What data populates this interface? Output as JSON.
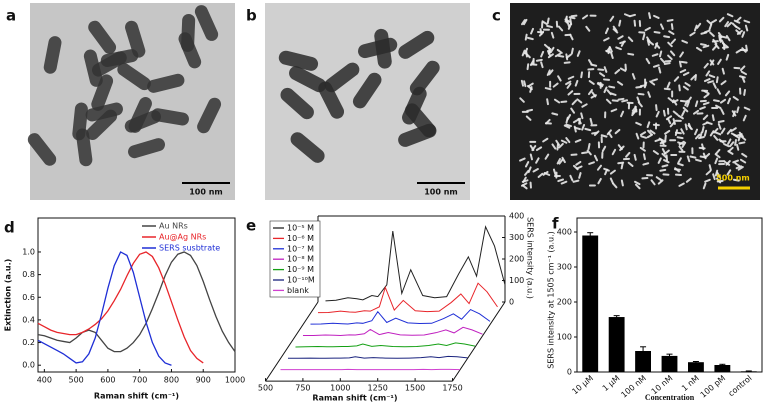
{
  "images": [
    {
      "panel": "a",
      "scale_bar": "100 nm"
    },
    {
      "panel": "b",
      "scale_bar": "100 nm"
    },
    {
      "panel": "c",
      "scale_bar": "500 nm"
    }
  ],
  "chart_data": [
    {
      "type": "line",
      "panel": "d",
      "xlabel": "Raman shift (cm⁻¹)",
      "ylabel": "Extinction (a.u.)",
      "xlim": [
        380,
        1000
      ],
      "xticks": [
        400,
        500,
        600,
        700,
        800,
        900,
        1000
      ],
      "ylim": [
        -0.06,
        1.3
      ],
      "yticks": [
        {
          "value": 0,
          "label": "0.0"
        },
        {
          "value": 0.2,
          "label": "0.2"
        },
        {
          "value": 0.4,
          "label": "0.4"
        },
        {
          "value": 0.6,
          "label": "0.6"
        },
        {
          "value": 0.8,
          "label": "0.8"
        },
        {
          "value": 1,
          "label": "1.0"
        }
      ],
      "x": [
        380,
        400,
        420,
        440,
        460,
        480,
        500,
        520,
        540,
        560,
        580,
        600,
        620,
        640,
        660,
        680,
        700,
        720,
        740,
        760,
        780,
        800,
        820,
        840,
        860,
        880,
        900,
        920,
        940,
        960,
        980,
        1000
      ],
      "series": [
        {
          "name": "Au NRs",
          "color": "#444444",
          "values": [
            0.27,
            0.26,
            0.24,
            0.22,
            0.21,
            0.2,
            0.24,
            0.29,
            0.31,
            0.29,
            0.22,
            0.15,
            0.12,
            0.12,
            0.15,
            0.2,
            0.27,
            0.37,
            0.5,
            0.64,
            0.79,
            0.91,
            0.98,
            1.0,
            0.97,
            0.88,
            0.74,
            0.58,
            0.43,
            0.3,
            0.2,
            0.12
          ]
        },
        {
          "name": "Au@Ag NRs",
          "color": "#e8252a",
          "values": [
            0.37,
            0.34,
            0.31,
            0.29,
            0.28,
            0.27,
            0.27,
            0.29,
            0.32,
            0.36,
            0.41,
            0.48,
            0.57,
            0.67,
            0.79,
            0.9,
            0.98,
            1.0,
            0.96,
            0.86,
            0.72,
            0.56,
            0.4,
            0.25,
            0.13,
            0.06,
            0.02,
            null,
            null,
            null,
            null,
            null
          ]
        },
        {
          "name": "SERS susbtrate",
          "color": "#1f2fd6",
          "values": [
            0.22,
            0.19,
            0.16,
            0.13,
            0.1,
            0.06,
            0.02,
            0.03,
            0.1,
            0.24,
            0.45,
            0.68,
            0.88,
            1.0,
            0.97,
            0.82,
            0.6,
            0.38,
            0.2,
            0.08,
            0.02,
            0.0,
            null,
            null,
            null,
            null,
            null,
            null,
            null,
            null,
            null,
            null
          ]
        }
      ]
    },
    {
      "type": "waterfall",
      "panel": "e",
      "xlabel": "Raman shift (cm⁻¹)",
      "y2label": "SERS intensity (a.u.)",
      "xlim": [
        500,
        1750
      ],
      "xticks": [
        500,
        750,
        1000,
        1250,
        1500,
        1750
      ],
      "y2lim": [
        0,
        400
      ],
      "y2ticks": [
        0,
        100,
        200,
        300,
        400
      ],
      "x": [
        550,
        620,
        700,
        760,
        800,
        860,
        900,
        960,
        1000,
        1060,
        1120,
        1200,
        1280,
        1360,
        1440,
        1505,
        1560,
        1620,
        1680,
        1750
      ],
      "series": [
        {
          "name": "10⁻⁵ M",
          "color": "#222222",
          "axis": "y2",
          "values": [
            5,
            8,
            20,
            15,
            10,
            30,
            25,
            80,
            330,
            40,
            150,
            30,
            20,
            25,
            130,
            210,
            120,
            350,
            260,
            80
          ]
        },
        {
          "name": "10⁻⁶ M",
          "color": "#e8252a",
          "axis": "y2",
          "values": [
            3,
            4,
            10,
            6,
            5,
            12,
            10,
            30,
            120,
            15,
            60,
            12,
            8,
            10,
            50,
            90,
            45,
            140,
            100,
            30
          ]
        },
        {
          "name": "10⁻⁷ M",
          "color": "#1f2fd6",
          "axis": "y2",
          "values": [
            2,
            3,
            6,
            4,
            3,
            8,
            6,
            18,
            60,
            10,
            30,
            8,
            5,
            6,
            28,
            50,
            25,
            70,
            50,
            15
          ]
        },
        {
          "name": "10⁻⁸ M",
          "color": "#c020c0",
          "axis": "y2",
          "values": [
            2,
            2,
            4,
            3,
            2,
            5,
            4,
            10,
            30,
            6,
            16,
            5,
            3,
            4,
            15,
            28,
            14,
            40,
            28,
            8
          ]
        },
        {
          "name": "10⁻⁹ M",
          "color": "#14a014",
          "axis": "y2",
          "values": [
            1,
            2,
            3,
            2,
            2,
            3,
            3,
            6,
            15,
            4,
            8,
            3,
            2,
            3,
            8,
            15,
            8,
            20,
            15,
            5
          ]
        },
        {
          "name": "10⁻¹⁰M",
          "color": "#1a237e",
          "axis": "y2",
          "values": [
            1,
            1,
            2,
            1,
            1,
            2,
            2,
            3,
            8,
            2,
            4,
            2,
            1,
            2,
            4,
            8,
            4,
            10,
            8,
            3
          ]
        },
        {
          "name": "blank",
          "color": "#d040d0",
          "axis": "y2",
          "values": [
            1,
            1,
            1,
            1,
            1,
            1,
            1,
            1,
            2,
            1,
            1,
            1,
            1,
            1,
            1,
            2,
            1,
            2,
            2,
            1
          ]
        }
      ]
    },
    {
      "type": "bar",
      "panel": "f",
      "xlabel": "Concentration",
      "ylabel": "SERS intensity at 1505 cm⁻¹ (a.u.)",
      "categories": [
        "10 μM",
        "1 μM",
        "100 nM",
        "10 nM",
        "1 nM",
        "100 pM",
        "control"
      ],
      "values": [
        390,
        157,
        60,
        46,
        28,
        20,
        2
      ],
      "errors": [
        8,
        4,
        12,
        5,
        2,
        2,
        1
      ],
      "color": "#000000",
      "ylim": [
        0,
        440
      ],
      "yticks": [
        0,
        100,
        200,
        300,
        400
      ]
    }
  ]
}
